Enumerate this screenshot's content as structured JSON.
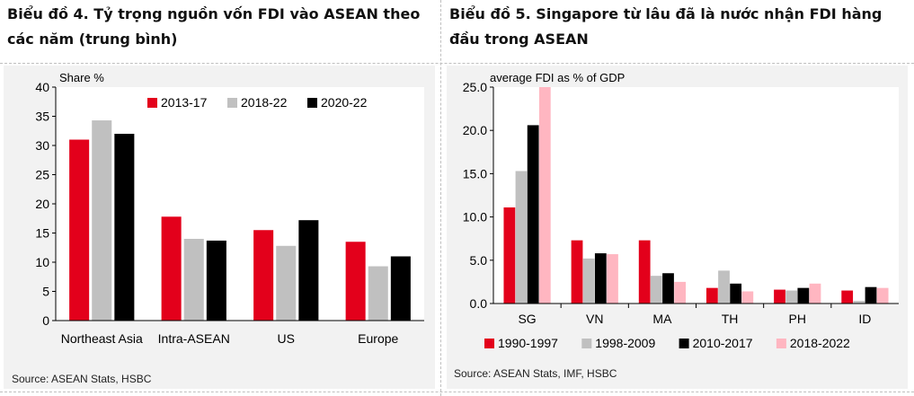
{
  "panels": [
    {
      "title": "Biểu đồ 4. Tỷ trọng nguồn vốn FDI vào ASEAN theo các năm (trung bình)",
      "source": "Source: ASEAN Stats, HSBC"
    },
    {
      "title": "Biểu đồ 5. Singapore từ lâu đã là nước nhận FDI hàng đầu trong ASEAN",
      "source": "Source: ASEAN Stats, IMF, HSBC"
    }
  ],
  "chart_data": [
    {
      "type": "bar",
      "ylabel": "Share %",
      "ylim": [
        0,
        40
      ],
      "yticks": [
        "0",
        "5",
        "10",
        "15",
        "20",
        "25",
        "30",
        "35",
        "40"
      ],
      "categories": [
        "Northeast Asia",
        "Intra-ASEAN",
        "US",
        "Europe"
      ],
      "series": [
        {
          "name": "2013-17",
          "color": "#e3001b",
          "values": [
            31.0,
            17.8,
            15.5,
            13.5
          ]
        },
        {
          "name": "2018-22",
          "color": "#c0c0c0",
          "values": [
            34.3,
            14.0,
            12.8,
            9.3
          ]
        },
        {
          "name": "2020-22",
          "color": "#000000",
          "values": [
            32.0,
            13.7,
            17.2,
            11.0
          ]
        }
      ],
      "legend_position": "top"
    },
    {
      "type": "bar",
      "ylabel": "average FDI as % of GDP",
      "ylim": [
        0,
        25
      ],
      "yticks": [
        "0.0",
        "5.0",
        "10.0",
        "15.0",
        "20.0",
        "25.0"
      ],
      "categories": [
        "SG",
        "VN",
        "MA",
        "TH",
        "PH",
        "ID"
      ],
      "series": [
        {
          "name": "1990-1997",
          "color": "#e3001b",
          "values": [
            11.1,
            7.3,
            7.3,
            1.8,
            1.6,
            1.5
          ]
        },
        {
          "name": "1998-2009",
          "color": "#c0c0c0",
          "values": [
            15.3,
            5.2,
            3.2,
            3.8,
            1.5,
            0.3
          ]
        },
        {
          "name": "2010-2017",
          "color": "#000000",
          "values": [
            20.6,
            5.8,
            3.5,
            2.3,
            1.8,
            1.9
          ]
        },
        {
          "name": "2018-2022",
          "color": "#ffb6c1",
          "values": [
            25.0,
            5.7,
            2.5,
            1.4,
            2.3,
            1.8
          ]
        }
      ],
      "legend_position": "bottom"
    }
  ]
}
